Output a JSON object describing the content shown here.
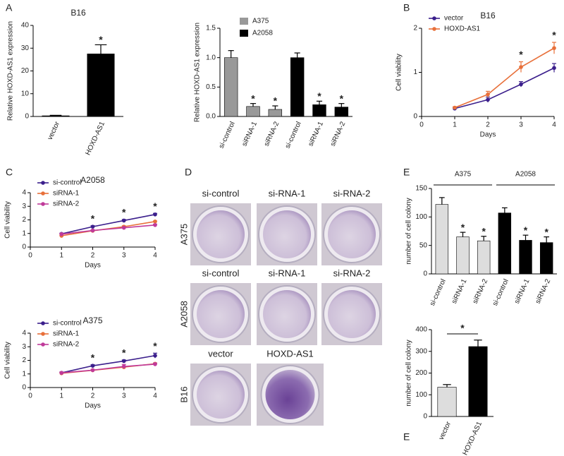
{
  "panel_labels": [
    "A",
    "B",
    "C",
    "D",
    "E",
    "E"
  ],
  "chart_data": [
    {
      "type": "bar",
      "title": "B16",
      "ylabel": "Relative HOXD-AS1 expression",
      "categories": [
        "vector",
        "HOXD-AS1"
      ],
      "values": [
        0.3,
        27.5
      ],
      "errors": [
        0.2,
        4
      ],
      "annotations": [
        null,
        "*"
      ],
      "color": "#000000",
      "ylim": [
        0,
        40
      ],
      "yticks": [
        0,
        10,
        20,
        30,
        40
      ]
    },
    {
      "type": "bar",
      "ylabel": "Relative HOXD-AS1 expression",
      "categories": [
        "si-control",
        "siRNA-1",
        "siRNA-2",
        "si-control",
        "siRNA-1",
        "siRNA-2"
      ],
      "series": [
        {
          "name": "A375",
          "color": "#999999",
          "values": [
            1.0,
            0.17,
            0.12,
            null,
            null,
            null
          ],
          "errors": [
            0.12,
            0.05,
            0.06,
            null,
            null,
            null
          ],
          "annotations": [
            null,
            "*",
            "*",
            null,
            null,
            null
          ]
        },
        {
          "name": "A2058",
          "color": "#000000",
          "values": [
            null,
            null,
            null,
            1.0,
            0.2,
            0.16
          ],
          "errors": [
            null,
            null,
            null,
            0.08,
            0.06,
            0.06
          ],
          "annotations": [
            null,
            null,
            null,
            null,
            "*",
            "*"
          ]
        }
      ],
      "legend": "top-left",
      "ylim": [
        0,
        1.5
      ],
      "yticks": [
        {
          "value": 0,
          "label": "0.0"
        },
        0.5,
        {
          "value": 1,
          "label": "1.0"
        },
        1.5
      ]
    },
    {
      "type": "line",
      "title": "B16",
      "xlabel": "Days",
      "ylabel": "Cell viability",
      "x": [
        1,
        2,
        3,
        4
      ],
      "series": [
        {
          "name": "vector",
          "color": "#3b1f8c",
          "values": [
            0.18,
            0.38,
            0.73,
            1.1
          ],
          "errors": [
            0.02,
            0.06,
            0.06,
            0.1
          ]
        },
        {
          "name": "HOXD-AS1",
          "color": "#e8703a",
          "values": [
            0.2,
            0.5,
            1.12,
            1.55
          ],
          "errors": [
            0.02,
            0.07,
            0.12,
            0.13
          ]
        }
      ],
      "annotations": [
        null,
        null,
        "*",
        "*"
      ],
      "legend": "top-left",
      "xlim": [
        0,
        4
      ],
      "xticks": [
        0,
        1,
        2,
        3,
        4
      ],
      "ylim": [
        0,
        2
      ],
      "yticks": [
        0,
        1,
        2
      ]
    },
    {
      "type": "line",
      "title": "A2058",
      "xlabel": "Days",
      "ylabel": "Cell viability",
      "x": [
        1,
        2,
        3,
        4
      ],
      "series": [
        {
          "name": "si-control",
          "color": "#3b1f8c",
          "values": [
            0.97,
            1.5,
            1.95,
            2.4
          ],
          "errors": [
            0.05,
            0.07,
            0.08,
            0.08
          ]
        },
        {
          "name": "siRNA-1",
          "color": "#e8703a",
          "values": [
            0.83,
            1.2,
            1.5,
            1.88
          ],
          "errors": [
            0.05,
            0.06,
            0.06,
            0.04
          ]
        },
        {
          "name": "siRNA-2",
          "color": "#c03a9a",
          "values": [
            0.95,
            1.22,
            1.42,
            1.62
          ],
          "errors": [
            0.05,
            0.05,
            0.05,
            0.07
          ]
        }
      ],
      "annotations": [
        null,
        "*",
        "*",
        "*"
      ],
      "legend": "top-left",
      "xlim": [
        0,
        4
      ],
      "xticks": [
        0,
        1,
        2,
        3,
        4
      ],
      "ylim": [
        0,
        4
      ],
      "yticks": [
        0,
        1,
        2,
        3,
        4
      ]
    },
    {
      "type": "line",
      "title": "A375",
      "xlabel": "Days",
      "ylabel": "Cell viability",
      "x": [
        1,
        2,
        3,
        4
      ],
      "series": [
        {
          "name": "si-control",
          "color": "#3b1f8c",
          "values": [
            1.08,
            1.6,
            1.95,
            2.35
          ],
          "errors": [
            0.06,
            0.08,
            0.08,
            0.18
          ]
        },
        {
          "name": "siRNA-1",
          "color": "#e8703a",
          "values": [
            1.05,
            1.27,
            1.5,
            1.75
          ],
          "errors": [
            0.05,
            0.05,
            0.06,
            0.06
          ]
        },
        {
          "name": "siRNA-2",
          "color": "#c03a9a",
          "values": [
            1.08,
            1.28,
            1.55,
            1.72
          ],
          "errors": [
            0.05,
            0.05,
            0.15,
            0.08
          ]
        }
      ],
      "annotations": [
        null,
        "*",
        "*",
        "*"
      ],
      "legend": "top-left",
      "xlim": [
        0,
        4
      ],
      "xticks": [
        0,
        1,
        2,
        3,
        4
      ],
      "ylim": [
        0,
        4
      ],
      "yticks": [
        0,
        1,
        2,
        3,
        4
      ]
    },
    {
      "type": "bar",
      "ylabel": "number of cell colony",
      "categories": [
        "si-control",
        "siRNA-1",
        "siRNA-2",
        "si-control",
        "siRNA-1",
        "siRNA-2"
      ],
      "series": [
        {
          "name": "A375",
          "color": "#dddddd",
          "values": [
            122,
            65,
            58,
            null,
            null,
            null
          ],
          "errors": [
            12,
            8,
            8,
            null,
            null,
            null
          ],
          "annotations": [
            null,
            "*",
            "*",
            null,
            null,
            null
          ]
        },
        {
          "name": "A2058",
          "color": "#000000",
          "values": [
            null,
            null,
            null,
            107,
            59,
            55
          ],
          "errors": [
            null,
            null,
            null,
            9,
            9,
            10
          ],
          "annotations": [
            null,
            null,
            null,
            null,
            "*",
            "*"
          ]
        }
      ],
      "legend": "group-header",
      "ylim": [
        0,
        150
      ],
      "yticks": [
        0,
        50,
        100,
        150
      ]
    },
    {
      "type": "bar",
      "ylabel": "number of cell colony",
      "categories": [
        "vector",
        "HOXD-AS1"
      ],
      "values": [
        135,
        322
      ],
      "errors": [
        12,
        30
      ],
      "colors": [
        "#dddddd",
        "#000000"
      ],
      "bracket_annotation": "*",
      "ylim": [
        0,
        400
      ],
      "yticks": [
        0,
        100,
        200,
        300,
        400
      ]
    }
  ],
  "plates": {
    "rows": [
      {
        "label": "A375",
        "headers": [
          "si-control",
          "si-RNA-1",
          "si-RNA-2"
        ]
      },
      {
        "label": "A2058",
        "headers": [
          "si-control",
          "si-RNA-1",
          "si-RNA-2"
        ]
      },
      {
        "label": "B16",
        "headers": [
          "vector",
          "HOXD-AS1"
        ]
      }
    ]
  }
}
